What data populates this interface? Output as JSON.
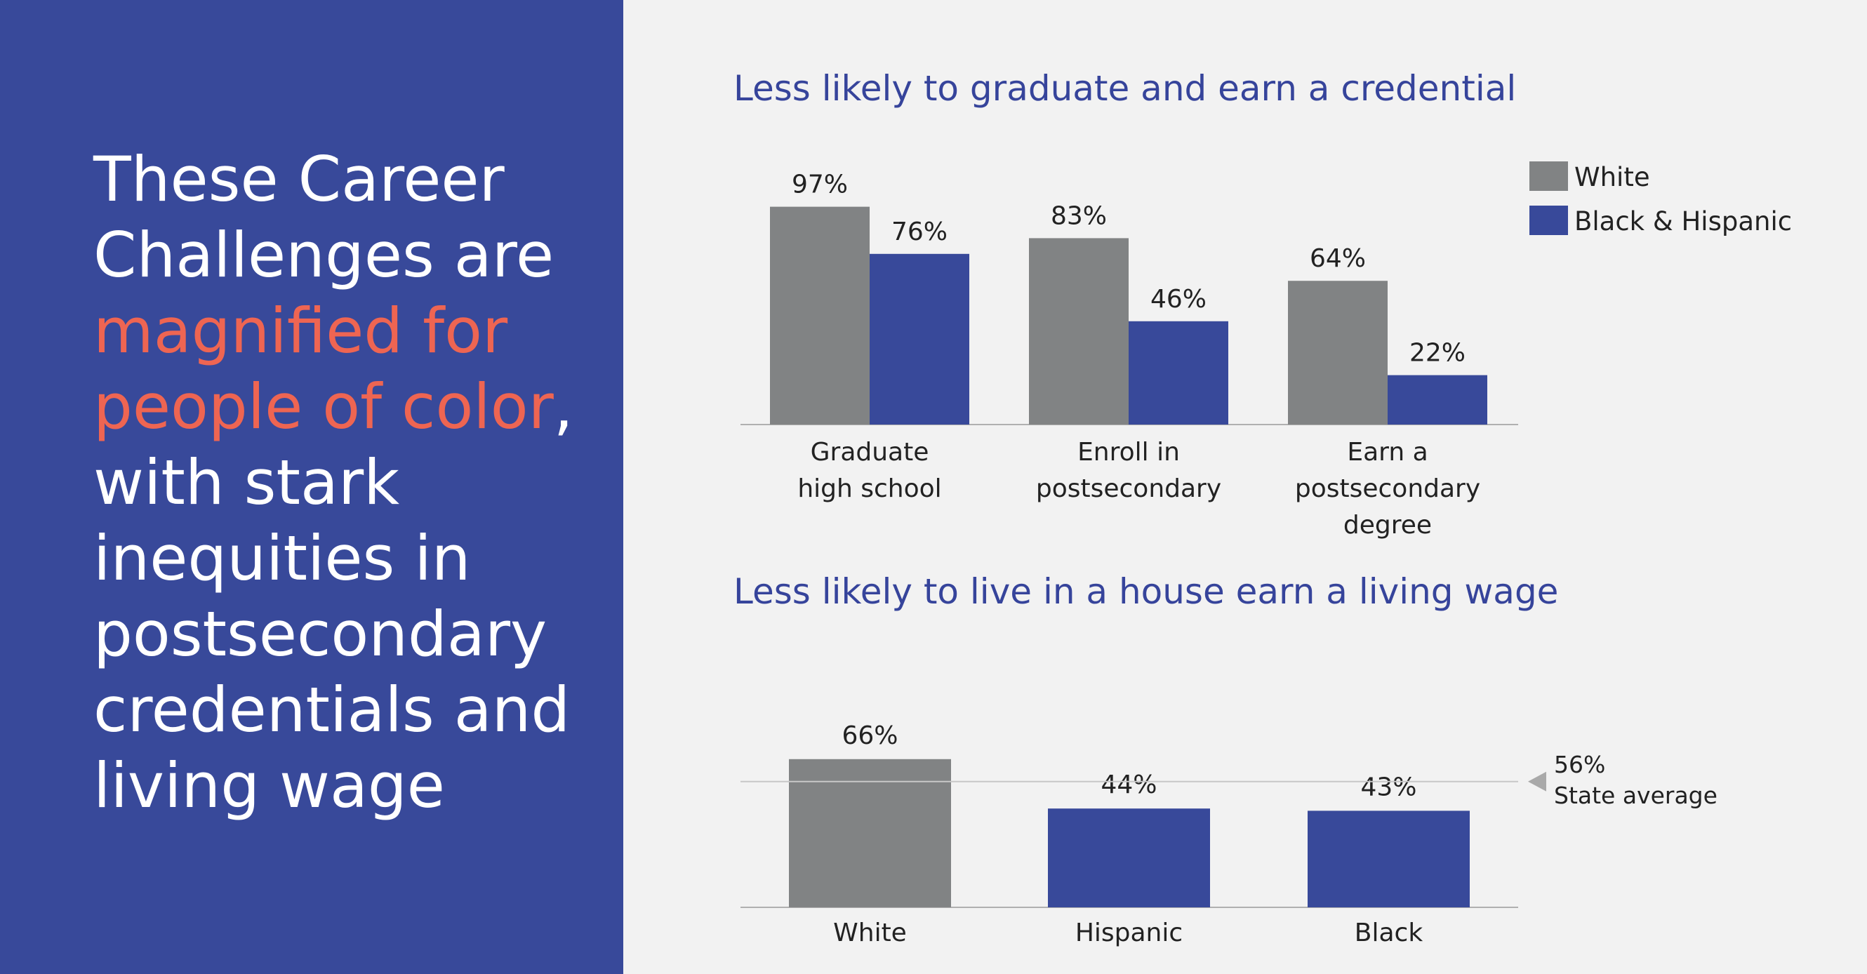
{
  "headline": {
    "part1": "These Career Challenges are ",
    "highlight": "magnified for people of color",
    "part2": ", with stark inequities in postsecondary credentials and living wage"
  },
  "colors": {
    "panel": "#38499a",
    "accent": "#ee6552",
    "white_series": "#818384",
    "bh_series": "#38499a",
    "title": "#36449b"
  },
  "chart_data": [
    {
      "type": "bar",
      "title": "Less likely to graduate and earn a credential",
      "categories": [
        [
          "Graduate",
          "high school"
        ],
        [
          "Enroll in",
          "postsecondary"
        ],
        [
          "Earn a",
          "postsecondary",
          "degree"
        ]
      ],
      "series": [
        {
          "name": "White",
          "values": [
            97,
            83,
            64
          ],
          "labels": [
            "97%",
            "83%",
            "64%"
          ],
          "color": "#818384"
        },
        {
          "name": "Black & Hispanic",
          "values": [
            76,
            46,
            22
          ],
          "labels": [
            "76%",
            "46%",
            "22%"
          ],
          "color": "#38499a"
        }
      ],
      "ylim": [
        0,
        100
      ],
      "legend": "top-right"
    },
    {
      "type": "bar",
      "title": "Less likely to live in a house earn a living wage",
      "categories": [
        "White",
        "Hispanic",
        "Black"
      ],
      "values": [
        66,
        44,
        43
      ],
      "labels": [
        "66%",
        "44%",
        "43%"
      ],
      "colors": [
        "#818384",
        "#38499a",
        "#38499a"
      ],
      "ylim": [
        0,
        100
      ],
      "reference_line": {
        "value": 56,
        "label_value": "56%",
        "label_text": "State average"
      }
    }
  ]
}
